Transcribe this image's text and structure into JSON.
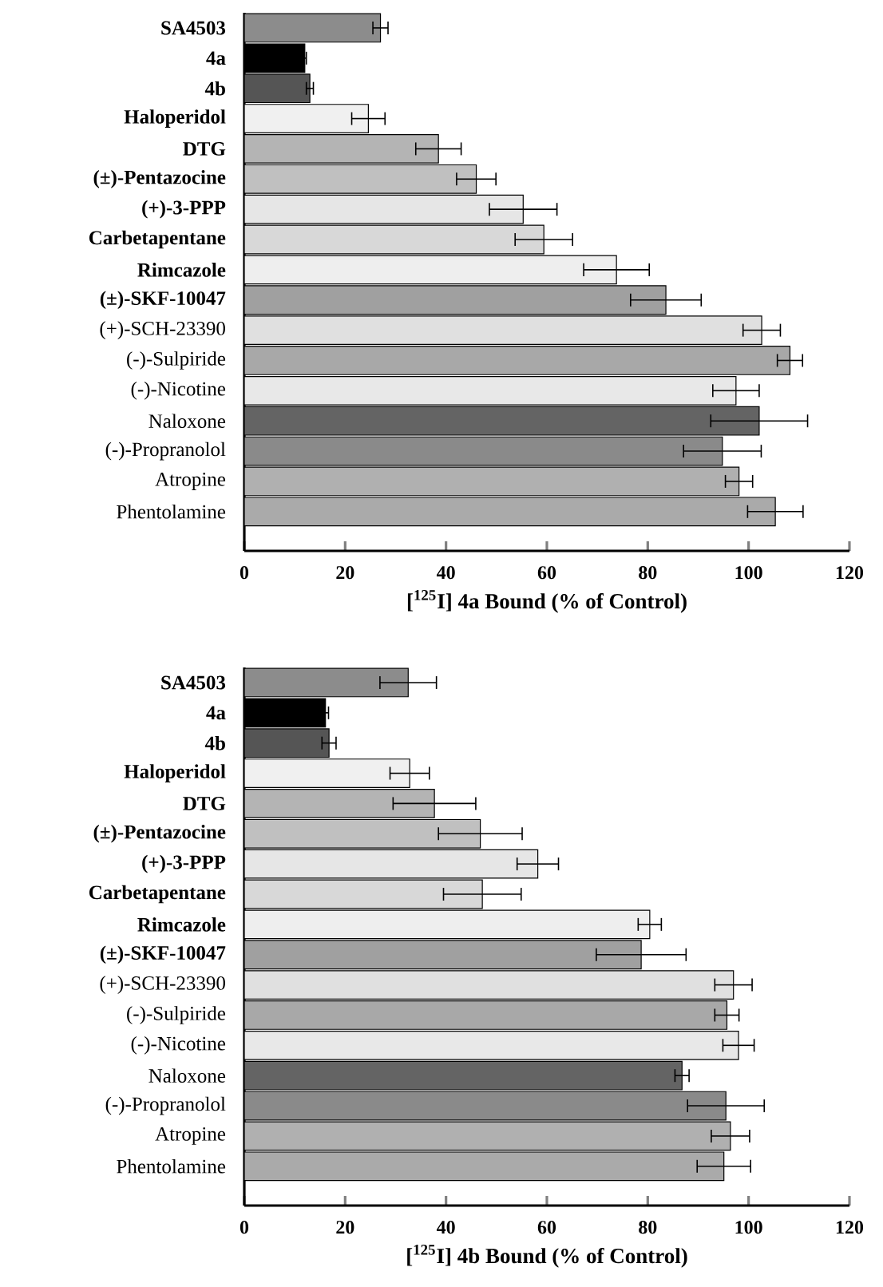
{
  "chart_data": [
    {
      "type": "bar",
      "orientation": "horizontal",
      "xlabel": "[$^{125}$I] 4a Bound (% of Control)",
      "categories": [
        "**SA4503**",
        "**4a**",
        "**4b**",
        "**Haloperidol**",
        "**DTG**",
        "**(±)-Pentazocine**",
        "**(+)-3-PPP**",
        "**Carbetapentane**",
        "**Rimcazole**",
        "**(±)-SKF-10047**",
        "(+)-SCH-23390",
        "(-)-Sulpiride",
        "(-)-Nicotine",
        "Naloxone",
        "(-)-Propranolol",
        "Atropine",
        "Phentolamine"
      ],
      "values": [
        27,
        12,
        13,
        24.6,
        38.5,
        46,
        55.3,
        59.4,
        73.8,
        83.6,
        102.6,
        108.2,
        97.5,
        102.1,
        94.8,
        98.1,
        105.3
      ],
      "errors": [
        1.5,
        0.3,
        0.7,
        3.3,
        4.5,
        3.9,
        6.7,
        5.7,
        6.5,
        7,
        3.7,
        2.5,
        4.6,
        9.6,
        7.7,
        2.7,
        5.5
      ],
      "colors": [
        "#8c8c8c",
        "#000000",
        "#555555",
        "#f0f0f0",
        "#b4b4b4",
        "#c0c0c0",
        "#e6e6e6",
        "#d8d8d8",
        "#eeeeee",
        "#a0a0a0",
        "#e0e0e0",
        "#a8a8a8",
        "#e8e8e8",
        "#646464",
        "#8a8a8a",
        "#b0b0b0",
        "#aaaaaa"
      ],
      "xlim": [
        0,
        120
      ],
      "xticks": [
        0,
        20,
        40,
        60,
        80,
        100,
        120
      ]
    },
    {
      "type": "bar",
      "orientation": "horizontal",
      "xlabel": "[$^{125}$I] 4b Bound (% of Control)",
      "categories": [
        "**SA4503**",
        "**4a**",
        "**4b**",
        "**Haloperidol**",
        "**DTG**",
        "**(±)-Pentazocine**",
        "**(+)-3-PPP**",
        "**Carbetapentane**",
        "**Rimcazole**",
        "**(±)-SKF-10047**",
        "(+)-SCH-23390",
        "(-)-Sulpiride",
        "(-)-Nicotine",
        "Naloxone",
        "(-)-Propranolol",
        "Atropine",
        "Phentolamine"
      ],
      "values": [
        32.5,
        16.1,
        16.8,
        32.8,
        37.7,
        46.8,
        58.2,
        47.2,
        80.4,
        78.7,
        97,
        95.7,
        98,
        86.8,
        95.5,
        96.4,
        95.1
      ],
      "errors": [
        5.6,
        0.6,
        1.4,
        3.9,
        8.2,
        8.3,
        4.1,
        7.7,
        2.3,
        8.9,
        3.7,
        2.4,
        3.1,
        1.4,
        7.6,
        3.8,
        5.3
      ],
      "colors": [
        "#8c8c8c",
        "#000000",
        "#555555",
        "#f0f0f0",
        "#b4b4b4",
        "#c0c0c0",
        "#e6e6e6",
        "#d8d8d8",
        "#eeeeee",
        "#a0a0a0",
        "#e0e0e0",
        "#a8a8a8",
        "#e8e8e8",
        "#646464",
        "#8a8a8a",
        "#b0b0b0",
        "#aaaaaa"
      ],
      "xlim": [
        0,
        120
      ],
      "xticks": [
        0,
        20,
        40,
        60,
        80,
        100,
        120
      ]
    }
  ]
}
